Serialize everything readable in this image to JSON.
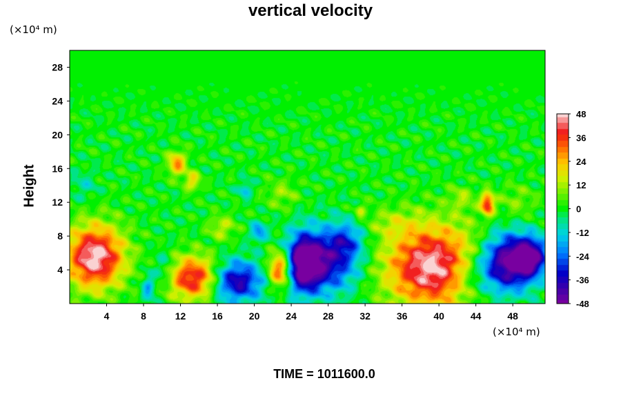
{
  "chart_data": {
    "type": "heatmap",
    "title": "vertical velocity",
    "ylabel": "Height",
    "x_unit_label": "(×10⁴ m)",
    "y_unit_label": "(×10⁴ m)",
    "footer": "TIME = 1011600.0",
    "x_ticks": [
      "4",
      "8",
      "12",
      "16",
      "20",
      "24",
      "28",
      "32",
      "36",
      "40",
      "44",
      "48"
    ],
    "y_ticks": [
      "4",
      "8",
      "12",
      "16",
      "20",
      "24",
      "28"
    ],
    "xlim": [
      0,
      51.5
    ],
    "ylim": [
      0,
      30
    ],
    "colorbar": {
      "ticks": [
        "48",
        "36",
        "24",
        "12",
        "0",
        "-12",
        "-24",
        "-36",
        "-48"
      ],
      "range": [
        -48,
        48
      ]
    },
    "features": [
      {
        "x": 2.7,
        "y": 5.5,
        "value": 50,
        "sx": 2.2,
        "sy": 2.6
      },
      {
        "x": 13.5,
        "y": 3.0,
        "value": 42,
        "sx": 2.0,
        "sy": 1.8
      },
      {
        "x": 18.0,
        "y": 2.6,
        "value": -40,
        "sx": 2.0,
        "sy": 1.7
      },
      {
        "x": 22.8,
        "y": 4.0,
        "value": 40,
        "sx": 0.9,
        "sy": 1.5
      },
      {
        "x": 25.3,
        "y": 4.7,
        "value": -50,
        "sx": 1.3,
        "sy": 2.3
      },
      {
        "x": 28.0,
        "y": 5.0,
        "value": -36,
        "sx": 2.3,
        "sy": 2.6
      },
      {
        "x": 30.0,
        "y": 7.5,
        "value": -18,
        "sx": 1.3,
        "sy": 1.5
      },
      {
        "x": 39.5,
        "y": 4.3,
        "value": 50,
        "sx": 3.6,
        "sy": 3.4
      },
      {
        "x": 43.5,
        "y": 3.5,
        "value": -16,
        "sx": 2.0,
        "sy": 2.2
      },
      {
        "x": 47.5,
        "y": 4.8,
        "value": -48,
        "sx": 2.0,
        "sy": 2.4
      },
      {
        "x": 50.0,
        "y": 5.5,
        "value": -40,
        "sx": 1.3,
        "sy": 1.6
      },
      {
        "x": 11.6,
        "y": 16.6,
        "value": 28,
        "sx": 0.7,
        "sy": 1.0
      },
      {
        "x": 13.3,
        "y": 14.5,
        "value": 20,
        "sx": 0.6,
        "sy": 0.8
      },
      {
        "x": 45.3,
        "y": 11.8,
        "value": 40,
        "sx": 0.5,
        "sy": 0.9
      },
      {
        "x": 20.5,
        "y": 8.5,
        "value": -22,
        "sx": 0.6,
        "sy": 0.8
      },
      {
        "x": 19.0,
        "y": 13.5,
        "value": -15,
        "sx": 0.5,
        "sy": 0.7
      },
      {
        "x": 10.2,
        "y": 4.0,
        "value": -12,
        "sx": 0.8,
        "sy": 1.5
      },
      {
        "x": 8.5,
        "y": 1.8,
        "value": -18,
        "sx": 0.5,
        "sy": 1.2
      },
      {
        "x": 35.0,
        "y": 9.5,
        "value": 9,
        "sx": 2.0,
        "sy": 1.2
      },
      {
        "x": 23.0,
        "y": 13.0,
        "value": 10,
        "sx": 1.2,
        "sy": 1.2
      },
      {
        "x": 42.5,
        "y": 12.5,
        "value": 10,
        "sx": 1.0,
        "sy": 1.0
      },
      {
        "x": 1.5,
        "y": 14.0,
        "value": -8,
        "sx": 1.0,
        "sy": 1.2
      },
      {
        "x": 31.5,
        "y": 11.0,
        "value": 14,
        "sx": 0.4,
        "sy": 0.6
      },
      {
        "x": 48.5,
        "y": 12.0,
        "value": 8,
        "sx": 1.5,
        "sy": 1.5
      },
      {
        "x": 16.5,
        "y": 9.0,
        "value": 14,
        "sx": 1.0,
        "sy": 1.0
      }
    ]
  }
}
